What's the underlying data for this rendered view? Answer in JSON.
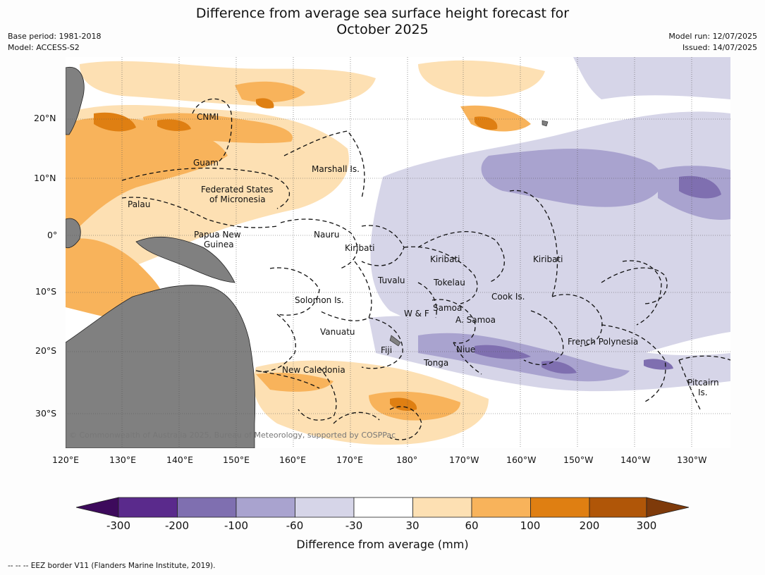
{
  "title_line1": "Difference from average sea surface height forecast for",
  "title_line2": "October 2025",
  "meta_left": [
    "Base period: 1981-2018",
    "Model: ACCESS-S2"
  ],
  "meta_right": [
    "Model run: 12/07/2025",
    "Issued: 14/07/2025"
  ],
  "lon_labels": [
    "120°E",
    "130°E",
    "140°E",
    "150°E",
    "160°E",
    "170°E",
    "180°",
    "170°W",
    "160°W",
    "150°W",
    "140°W",
    "130°W"
  ],
  "lat_labels": [
    "20°N",
    "10°N",
    "0°",
    "10°S",
    "20°S",
    "30°S"
  ],
  "regions": [
    "CNMI",
    "Guam",
    "Marshall Is.",
    "Federated States",
    "of Micronesia",
    "Palau",
    "Nauru",
    "Papua New",
    "Guinea",
    "Kiribati",
    "Kiribati",
    "Kiribati",
    "Tuvalu",
    "Tokelau",
    "Cook Is.",
    "Solomon Is.",
    "W & F",
    "Samoa",
    "A. Samoa",
    "Vanuatu",
    "Fiji",
    "Niue",
    "Tonga",
    "French Polynesia",
    "New Caledonia",
    "Pitcairn",
    "Is."
  ],
  "copyright": "© Commonwealth of Australia 2025, Bureau of Meteorology, supported by COSPPac",
  "legend": {
    "title": "Difference from average (mm)",
    "ticks": [
      "-300",
      "-200",
      "-100",
      "-60",
      "-30",
      "30",
      "60",
      "100",
      "200",
      "300"
    ],
    "colors": [
      "#3d0a5c",
      "#5a2a8c",
      "#7f6fb0",
      "#a9a3cf",
      "#d6d5e8",
      "#ffffff",
      "#fde0b3",
      "#f8b35b",
      "#df7f12",
      "#b05608",
      "#7e3a0a"
    ]
  },
  "footer": "--  --  -- EEZ border V11 (Flanders Marine Institute, 2019)."
}
